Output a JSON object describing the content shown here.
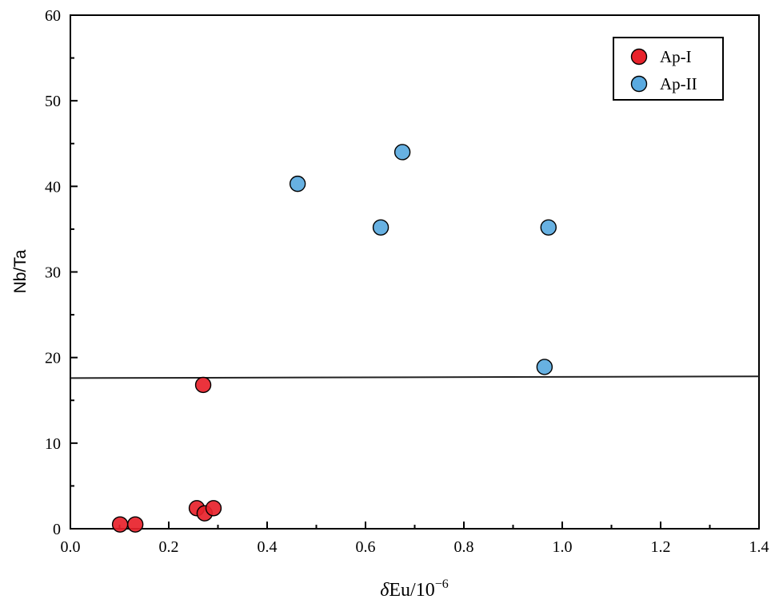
{
  "chart_data": {
    "type": "scatter",
    "title": "",
    "xlabel_italic": "δ",
    "xlabel_rest": "Eu/10",
    "xlabel_sup": "−6",
    "ylabel": "Nb/Ta",
    "xlim": [
      0,
      1.4
    ],
    "ylim": [
      0,
      60
    ],
    "xticks": [
      "0.0",
      "0.2",
      "0.4",
      "0.6",
      "0.8",
      "1.0",
      "1.2",
      "1.4"
    ],
    "yticks": [
      "0",
      "10",
      "20",
      "30",
      "40",
      "50",
      "60"
    ],
    "grid": false,
    "legend_position": "top-right",
    "series": [
      {
        "name": "Ap-I",
        "color": "#e8222b",
        "points": [
          [
            0.101,
            0.5
          ],
          [
            0.132,
            0.5
          ],
          [
            0.257,
            2.4
          ],
          [
            0.273,
            1.8
          ],
          [
            0.291,
            2.4
          ],
          [
            0.27,
            16.8
          ]
        ]
      },
      {
        "name": "Ap-II",
        "color": "#5aaae0",
        "points": [
          [
            0.462,
            40.3
          ],
          [
            0.631,
            35.2
          ],
          [
            0.675,
            44.0
          ],
          [
            0.972,
            35.2
          ],
          [
            0.964,
            18.9
          ]
        ]
      }
    ],
    "reference_line": {
      "x": [
        0,
        1.4
      ],
      "y": [
        17.6,
        17.8
      ]
    }
  }
}
